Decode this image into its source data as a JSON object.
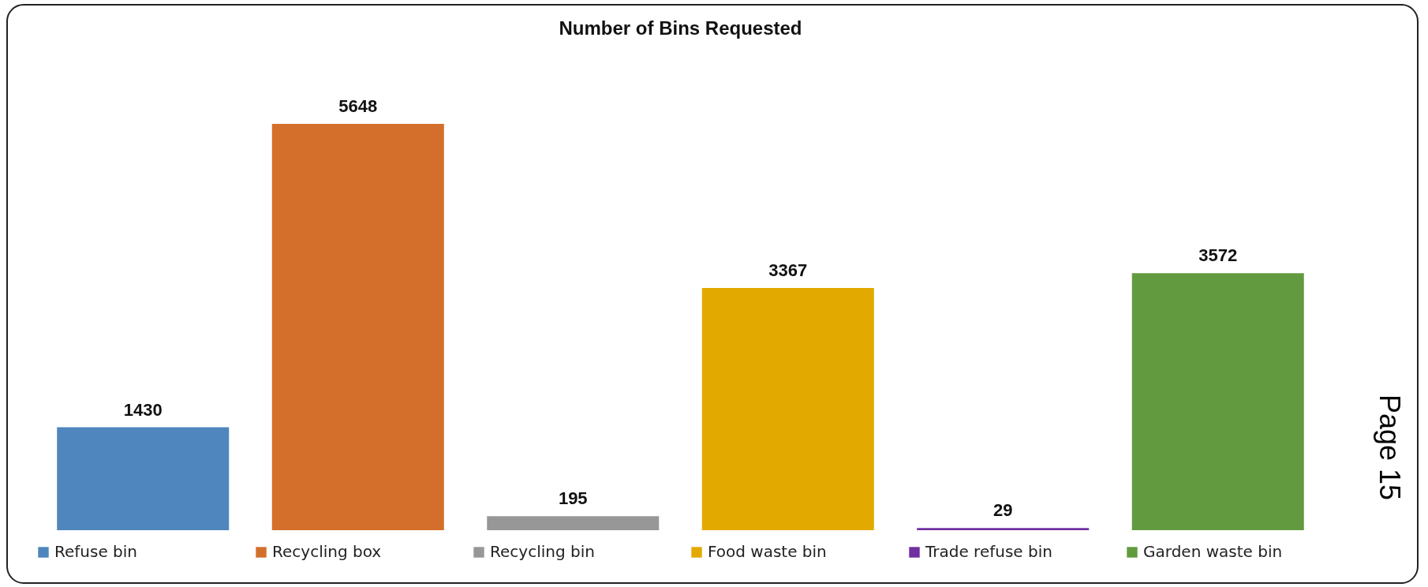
{
  "chart_data": {
    "type": "bar",
    "title": "Number of Bins Requested",
    "categories": [
      null,
      null,
      null,
      null,
      null,
      null
    ],
    "series": [
      {
        "name": "Refuse bin",
        "color": "#4e86bd",
        "values": [
          1430,
          null,
          null,
          null,
          null,
          null
        ]
      },
      {
        "name": "Recycling box",
        "color": "#d36f2b",
        "values": [
          null,
          5648,
          null,
          null,
          null,
          null
        ]
      },
      {
        "name": "Recycling bin",
        "color": "#979797",
        "values": [
          null,
          null,
          195,
          null,
          null,
          null
        ]
      },
      {
        "name": "Food waste bin",
        "color": "#e2a900",
        "values": [
          null,
          null,
          null,
          3367,
          null,
          null
        ]
      },
      {
        "name": "Trade refuse bin",
        "color": "#7030a0",
        "values": [
          null,
          null,
          null,
          null,
          29,
          null
        ]
      },
      {
        "name": "Garden waste bin",
        "color": "#629b3f",
        "values": [
          null,
          null,
          null,
          null,
          null,
          3572
        ]
      }
    ],
    "stacked": true,
    "data_labels": true,
    "legend": "bottom",
    "tick_labels": false,
    "annotations": [
      "Page 15"
    ]
  }
}
